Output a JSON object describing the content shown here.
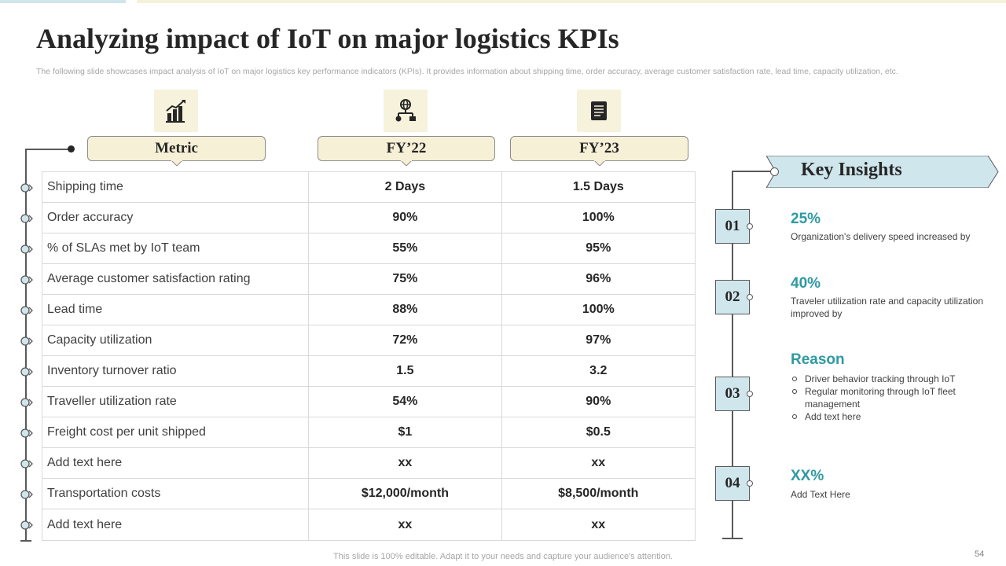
{
  "slide": {
    "title": "Analyzing impact of IoT on major logistics KPIs",
    "subtitle": "The following slide showcases impact analysis of IoT on major logistics key performance indicators (KPIs). It provides information about shipping time, order accuracy, average customer satisfaction rate, lead time, capacity utilization, etc.",
    "footer": "This slide is 100% editable. Adapt it to your needs and capture your audience's attention.",
    "page_number": "54"
  },
  "table": {
    "headers": {
      "metric": "Metric",
      "fy22": "FY’22",
      "fy23": "FY’23"
    },
    "header_icons": [
      "bar-chart-growth-icon",
      "globe-network-icon",
      "document-notes-icon"
    ],
    "rows": [
      {
        "metric": "Shipping time",
        "fy22": "2 Days",
        "fy23": "1.5 Days"
      },
      {
        "metric": "Order accuracy",
        "fy22": "90%",
        "fy23": "100%"
      },
      {
        "metric": "% of SLAs met by IoT team",
        "fy22": "55%",
        "fy23": "95%"
      },
      {
        "metric": "Average customer satisfaction rating",
        "fy22": "75%",
        "fy23": "96%"
      },
      {
        "metric": "Lead time",
        "fy22": "88%",
        "fy23": "100%"
      },
      {
        "metric": "Capacity utilization",
        "fy22": "72%",
        "fy23": "97%"
      },
      {
        "metric": "Inventory  turnover ratio",
        "fy22": "1.5",
        "fy23": "3.2"
      },
      {
        "metric": "Traveller  utilization rate",
        "fy22": "54%",
        "fy23": "90%"
      },
      {
        "metric": "Freight cost per unit  shipped",
        "fy22": "$1",
        "fy23": "$0.5"
      },
      {
        "metric": "Add text here",
        "fy22": "xx",
        "fy23": "xx"
      },
      {
        "metric": "Transportation costs",
        "fy22": "$12,000/month",
        "fy23": "$8,500/month"
      },
      {
        "metric": "Add text here",
        "fy22": "xx",
        "fy23": "xx"
      }
    ]
  },
  "insights": {
    "title": "Key Insights",
    "items": [
      {
        "number": "01",
        "heading": "25%",
        "text": "Organization's delivery  speed increased by"
      },
      {
        "number": "02",
        "heading": "40%",
        "text": "Traveler  utilization rate and capacity utilization improved  by"
      },
      {
        "number": "03",
        "heading": "Reason",
        "bullets": [
          "Driver behavior  tracking through IoT",
          "Regular monitoring through IoT fleet management",
          "Add text here"
        ]
      },
      {
        "number": "04",
        "heading": "XX%",
        "text": "Add Text Here"
      }
    ]
  },
  "colors": {
    "accent_teal": "#2e9aa3",
    "light_blue": "#cfe6ec",
    "cream": "#f6f0d7",
    "dark_text": "#262626"
  }
}
